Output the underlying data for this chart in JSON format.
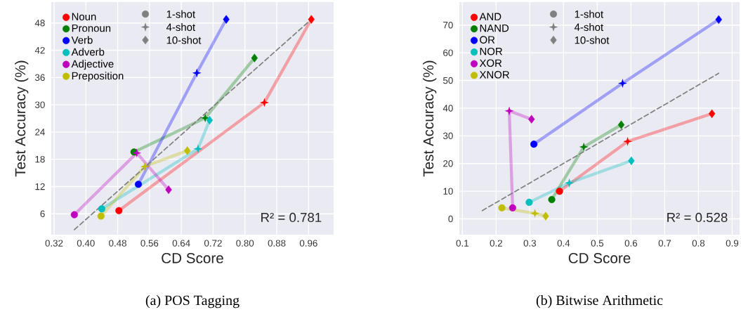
{
  "chart_data": [
    {
      "type": "line",
      "xlabel": "CD Score",
      "ylabel": "Test Accuracy (%)",
      "xlim": [
        0.313,
        1.023
      ],
      "ylim": [
        1.4,
        52.6
      ],
      "xticks": [
        0.32,
        {
          "value": 0.4,
          "label": "0.40"
        },
        0.48,
        0.56,
        0.64,
        0.72,
        {
          "value": 0.8,
          "label": "0.80"
        },
        0.88,
        0.96
      ],
      "yticks": [
        6,
        12,
        18,
        24,
        30,
        36,
        42,
        48
      ],
      "grid": true,
      "legend": "top left",
      "annotations": [
        "R² = 0.781",
        "(a) POS Tagging",
        "1-shot",
        "4-shot",
        "10-shot"
      ],
      "series": [
        {
          "name": "Noun",
          "type": "line",
          "color": "#ff0000",
          "marker": [
            "circle",
            "star",
            "diamond"
          ],
          "x": [
            0.483,
            0.849,
            0.967
          ],
          "values": [
            6.7,
            30.5,
            48.8
          ]
        },
        {
          "name": "Pronoun",
          "type": "line",
          "color": "#008000",
          "marker": [
            "circle",
            "star",
            "diamond"
          ],
          "x": [
            0.521,
            0.7,
            0.824
          ],
          "values": [
            19.6,
            27.1,
            40.3
          ]
        },
        {
          "name": "Verb",
          "type": "line",
          "color": "#0000ff",
          "marker": [
            "circle",
            "star",
            "diamond"
          ],
          "x": [
            0.532,
            0.679,
            0.753
          ],
          "values": [
            12.5,
            37.0,
            48.8
          ]
        },
        {
          "name": "Adverb",
          "type": "line",
          "color": "#00bfbf",
          "marker": [
            "circle",
            "star",
            "diamond"
          ],
          "x": [
            0.44,
            0.682,
            0.711
          ],
          "values": [
            7.1,
            20.3,
            26.6
          ]
        },
        {
          "name": "Adjective",
          "type": "line",
          "color": "#bf00bf",
          "marker": [
            "circle",
            "star",
            "diamond"
          ],
          "x": [
            0.371,
            0.528,
            0.608
          ],
          "values": [
            5.8,
            19.4,
            11.3
          ]
        },
        {
          "name": "Preposition",
          "type": "line",
          "color": "#bfbf00",
          "marker": [
            "circle",
            "star",
            "diamond"
          ],
          "x": [
            0.438,
            0.548,
            0.655
          ],
          "values": [
            5.5,
            16.4,
            19.9
          ]
        },
        {
          "type": "line",
          "color": "#808080",
          "line_style": "dashed",
          "x": [
            0.371,
            0.967
          ],
          "values": [
            2.5,
            48.8
          ]
        }
      ]
    },
    {
      "type": "line",
      "xlabel": "CD Score",
      "ylabel": "Test Accuracy (%)",
      "xlim": [
        0.091,
        0.922
      ],
      "ylim": [
        -5.7,
        78.3
      ],
      "xticks": [
        0.1,
        0.2,
        0.3,
        0.4,
        0.5,
        0.6,
        0.7,
        0.8,
        0.9
      ],
      "yticks": [
        0,
        10,
        20,
        30,
        40,
        50,
        60,
        70
      ],
      "grid": true,
      "legend": "top left",
      "annotations": [
        "R² = 0.528",
        "(b) Bitwise Arithmetic",
        "1-shot",
        "4-shot",
        "10-shot"
      ],
      "series": [
        {
          "name": "AND",
          "type": "line",
          "color": "#ff0000",
          "marker": [
            "circle",
            "star",
            "diamond"
          ],
          "x": [
            0.388,
            0.59,
            0.84
          ],
          "values": [
            10,
            28,
            38
          ]
        },
        {
          "name": "NAND",
          "type": "line",
          "color": "#008000",
          "marker": [
            "circle",
            "star",
            "diamond"
          ],
          "x": [
            0.365,
            0.46,
            0.571
          ],
          "values": [
            7,
            26,
            34
          ]
        },
        {
          "name": "OR",
          "type": "line",
          "color": "#0000ff",
          "marker": [
            "circle",
            "star",
            "diamond"
          ],
          "x": [
            0.312,
            0.575,
            0.86
          ],
          "values": [
            27,
            49,
            72
          ]
        },
        {
          "name": "NOR",
          "type": "line",
          "color": "#00bfbf",
          "marker": [
            "circle",
            "star",
            "diamond"
          ],
          "x": [
            0.298,
            0.417,
            0.601
          ],
          "values": [
            6,
            13,
            21
          ]
        },
        {
          "name": "XOR",
          "type": "line",
          "color": "#bf00bf",
          "marker": [
            "circle",
            "star",
            "diamond"
          ],
          "x": [
            0.249,
            0.239,
            0.305
          ],
          "values": [
            4,
            39,
            36
          ]
        },
        {
          "name": "XNOR",
          "type": "line",
          "color": "#bfbf00",
          "marker": [
            "circle",
            "star",
            "diamond"
          ],
          "x": [
            0.217,
            0.315,
            0.347
          ],
          "values": [
            4,
            2,
            1
          ]
        },
        {
          "type": "line",
          "color": "#808080",
          "line_style": "dashed",
          "x": [
            0.159,
            0.86
          ],
          "values": [
            3.0,
            52.6
          ]
        }
      ]
    }
  ]
}
